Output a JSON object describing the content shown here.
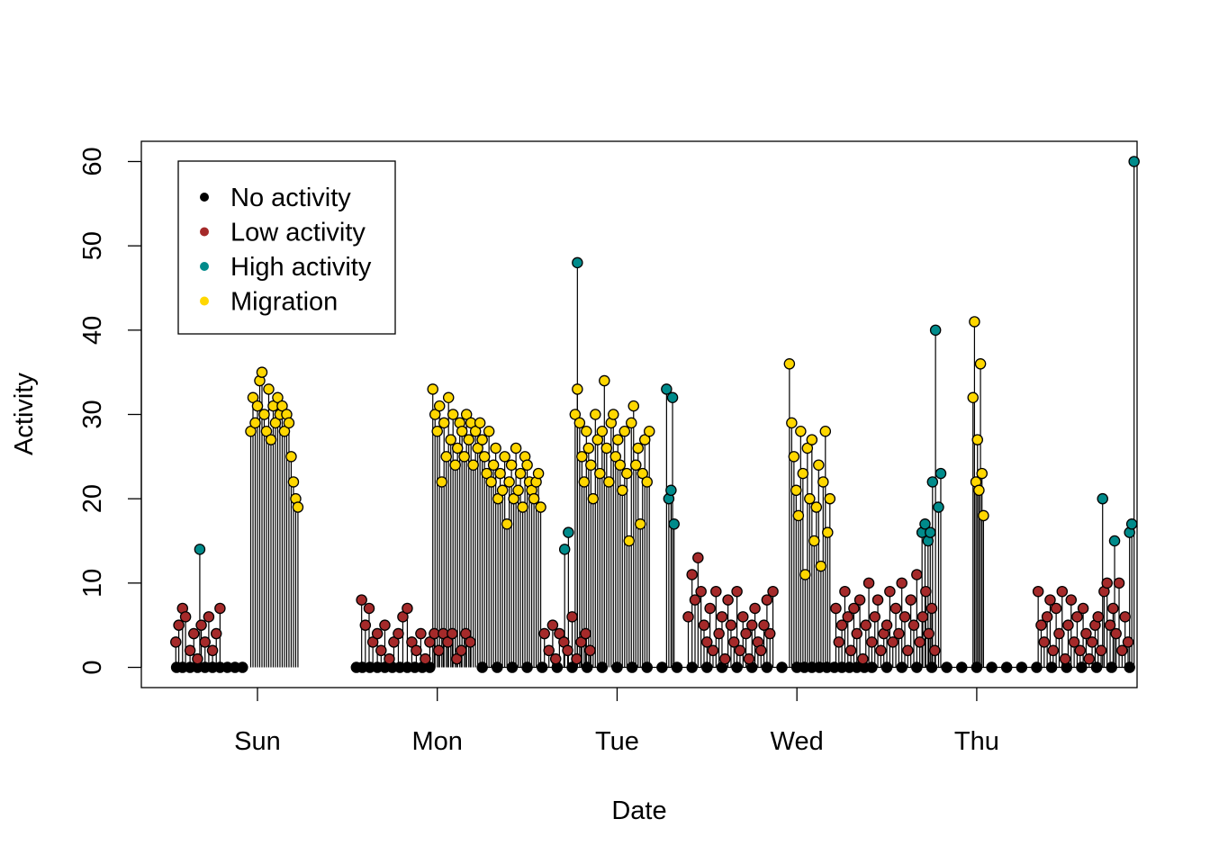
{
  "chart_data": {
    "type": "scatter",
    "xlabel": "Date",
    "ylabel": "Activity",
    "x_ticks": [
      "Sun",
      "Mon",
      "Tue",
      "Wed",
      "Thu"
    ],
    "x_tick_hours": [
      24,
      48,
      72,
      96,
      120
    ],
    "xlim_hours": [
      8.5,
      141.4
    ],
    "ylim": [
      -2.4,
      62.4
    ],
    "y_ticks": [
      0,
      10,
      20,
      30,
      40,
      50,
      60
    ],
    "y_tick_labels": [
      "0",
      "10",
      "20",
      "30",
      "40",
      "50",
      "60"
    ],
    "plot_style": "vertical lines from zero with filled circle markers",
    "grid": false,
    "legend": {
      "position": "top-left",
      "entries": [
        {
          "label": "No activity",
          "color": "#000000"
        },
        {
          "label": "Low activity",
          "color": "#A52A2A"
        },
        {
          "label": "High activity",
          "color": "#008B8B"
        },
        {
          "label": "Migration",
          "color": "#FFD700"
        }
      ]
    },
    "series": [
      {
        "name": "No activity",
        "color": "#000000",
        "x_hours": [
          13.2,
          14.0,
          15.0,
          16.0,
          17.0,
          18.0,
          19.0,
          20.0,
          21.0,
          22.0,
          37.2,
          38.0,
          39.0,
          40.0,
          41.0,
          42.0,
          43.0,
          44.0,
          45.0,
          46.0,
          47.0,
          54.0,
          56.0,
          58.0,
          60.0,
          62.0,
          64.0,
          66.0,
          68.0,
          70.0,
          72.0,
          74.0,
          76.0,
          78.0,
          80.0,
          82.0,
          84.0,
          86.0,
          88.0,
          90.0,
          92.0,
          94.0,
          96.0,
          97.0,
          98.0,
          99.0,
          100.0,
          101.0,
          102.0,
          103.0,
          104.0,
          105.0,
          106.0,
          108.0,
          110.0,
          112.0,
          114.0,
          116.0,
          118.0,
          120.0,
          122.0,
          124.0,
          126.0,
          128.0,
          130.0,
          132.0,
          134.0,
          136.0,
          138.0,
          140.4
        ],
        "values": [
          0,
          0,
          0,
          0,
          0,
          0,
          0,
          0,
          0,
          0,
          0,
          0,
          0,
          0,
          0,
          0,
          0,
          0,
          0,
          0,
          0,
          0,
          0,
          0,
          0,
          0,
          0,
          0,
          0,
          0,
          0,
          0,
          0,
          0,
          0,
          0,
          0,
          0,
          0,
          0,
          0,
          0,
          0,
          0,
          0,
          0,
          0,
          0,
          0,
          0,
          0,
          0,
          0,
          0,
          0,
          0,
          0,
          0,
          0,
          0,
          0,
          0,
          0,
          0,
          0,
          0,
          0,
          0,
          0,
          0
        ]
      },
      {
        "name": "Low activity",
        "color": "#A52A2A",
        "x_hours": [
          13.1,
          13.5,
          14.0,
          14.4,
          15.0,
          15.5,
          16.0,
          16.5,
          17.0,
          17.5,
          18.0,
          18.5,
          19.0,
          37.9,
          38.4,
          38.9,
          39.4,
          40.0,
          40.5,
          41.0,
          41.6,
          42.2,
          42.8,
          43.4,
          44.0,
          44.6,
          45.2,
          45.8,
          46.4,
          47.0,
          47.6,
          48.2,
          48.8,
          49.4,
          50.0,
          50.6,
          51.2,
          51.8,
          52.4,
          62.3,
          62.9,
          63.4,
          63.8,
          64.3,
          64.9,
          65.4,
          66.0,
          66.6,
          67.2,
          67.8,
          68.4,
          81.5,
          82.0,
          82.4,
          82.8,
          83.2,
          83.6,
          84.0,
          84.4,
          84.8,
          85.2,
          85.6,
          86.0,
          86.4,
          86.8,
          87.2,
          87.6,
          88.0,
          88.4,
          88.8,
          89.2,
          89.6,
          90.0,
          90.4,
          90.8,
          91.2,
          91.6,
          92.0,
          92.4,
          92.8,
          101.2,
          101.6,
          102.0,
          102.4,
          102.8,
          103.2,
          103.6,
          104.0,
          104.4,
          104.8,
          105.2,
          105.6,
          106.0,
          106.4,
          106.8,
          107.2,
          107.6,
          108.0,
          108.4,
          108.8,
          109.2,
          109.6,
          110.0,
          110.4,
          110.8,
          111.2,
          111.6,
          112.0,
          112.4,
          112.8,
          113.2,
          113.6,
          114.0,
          114.4,
          128.2,
          128.6,
          129.0,
          129.4,
          129.8,
          130.2,
          130.6,
          131.0,
          131.4,
          131.8,
          132.2,
          132.6,
          133.0,
          133.4,
          133.8,
          134.2,
          134.6,
          135.0,
          135.4,
          135.8,
          136.2,
          136.6,
          137.0,
          137.4,
          137.8,
          138.2,
          138.6,
          139.0,
          139.4,
          139.8,
          140.2
        ],
        "values": [
          3,
          5,
          7,
          6,
          2,
          4,
          1,
          5,
          3,
          6,
          2,
          4,
          7,
          8,
          5,
          7,
          3,
          4,
          2,
          5,
          1,
          3,
          4,
          6,
          7,
          3,
          2,
          4,
          1,
          3,
          4,
          2,
          4,
          3,
          4,
          1,
          2,
          4,
          3,
          4,
          2,
          5,
          1,
          4,
          3,
          2,
          6,
          1,
          3,
          4,
          2,
          6,
          11,
          8,
          13,
          9,
          5,
          3,
          7,
          2,
          9,
          4,
          6,
          1,
          8,
          5,
          3,
          9,
          2,
          6,
          4,
          1,
          5,
          7,
          3,
          2,
          5,
          8,
          4,
          9,
          7,
          3,
          5,
          9,
          6,
          2,
          7,
          4,
          8,
          1,
          5,
          10,
          3,
          6,
          8,
          2,
          4,
          5,
          9,
          3,
          7,
          4,
          10,
          6,
          2,
          8,
          5,
          11,
          3,
          6,
          9,
          4,
          7,
          2,
          9,
          5,
          3,
          6,
          8,
          2,
          7,
          4,
          9,
          1,
          5,
          8,
          3,
          6,
          2,
          7,
          4,
          1,
          3,
          5,
          6,
          2,
          9,
          10,
          5,
          7,
          4,
          10,
          2,
          6,
          3
        ],
        "_unused": "n"
      },
      {
        "name": "High activity",
        "color": "#008B8B",
        "x_hours": [
          16.3,
          65.0,
          65.5,
          66.7,
          78.6,
          78.9,
          79.2,
          79.4,
          79.6,
          112.7,
          113.1,
          113.5,
          113.8,
          114.1,
          114.5,
          114.9,
          115.2,
          136.8,
          138.4,
          140.4,
          140.7,
          141.0
        ],
        "values": [
          14,
          14,
          16,
          48,
          33,
          20,
          21,
          32,
          17,
          16,
          17,
          15,
          16,
          22,
          40,
          19,
          23,
          20,
          15,
          16,
          17,
          60
        ],
        "_unused": "n"
      },
      {
        "name": "Migration",
        "color": "#FFD700",
        "x_hours": [
          23.1,
          23.4,
          23.7,
          24.0,
          24.3,
          24.6,
          24.9,
          25.2,
          25.5,
          25.8,
          26.1,
          26.4,
          26.7,
          27.0,
          27.3,
          27.6,
          27.9,
          28.2,
          28.5,
          28.8,
          29.1,
          29.4,
          47.4,
          47.7,
          48.0,
          48.3,
          48.6,
          48.9,
          49.2,
          49.5,
          49.8,
          50.1,
          50.4,
          50.7,
          51.0,
          51.3,
          51.6,
          51.9,
          52.2,
          52.5,
          52.8,
          53.1,
          53.4,
          53.7,
          54.0,
          54.3,
          54.6,
          54.9,
          55.2,
          55.5,
          55.8,
          56.1,
          56.4,
          56.7,
          57.0,
          57.3,
          57.6,
          57.9,
          58.2,
          58.5,
          58.8,
          59.1,
          59.4,
          59.7,
          60.0,
          60.3,
          60.6,
          60.9,
          61.2,
          61.5,
          61.8,
          66.4,
          66.7,
          67.0,
          67.3,
          67.6,
          67.9,
          68.2,
          68.5,
          68.8,
          69.1,
          69.4,
          69.7,
          70.0,
          70.3,
          70.6,
          70.9,
          71.2,
          71.5,
          71.8,
          72.1,
          72.4,
          72.7,
          73.0,
          73.3,
          73.6,
          73.9,
          74.2,
          74.5,
          74.8,
          75.1,
          75.4,
          75.7,
          76.0,
          76.3,
          95.0,
          95.3,
          95.6,
          95.9,
          96.2,
          96.5,
          96.8,
          97.1,
          97.4,
          97.7,
          98.0,
          98.3,
          98.6,
          98.9,
          99.2,
          99.5,
          99.8,
          100.1,
          100.4,
          119.5,
          119.7,
          119.9,
          120.1,
          120.3,
          120.5,
          120.7,
          120.9
        ],
        "values": [
          28,
          32,
          29,
          31,
          34,
          35,
          30,
          28,
          33,
          27,
          31,
          29,
          32,
          30,
          31,
          28,
          30,
          29,
          25,
          22,
          20,
          19,
          33,
          30,
          28,
          31,
          22,
          29,
          25,
          32,
          27,
          30,
          24,
          26,
          29,
          28,
          25,
          30,
          27,
          29,
          24,
          28,
          26,
          29,
          27,
          25,
          23,
          28,
          22,
          24,
          26,
          20,
          23,
          21,
          25,
          17,
          22,
          24,
          20,
          26,
          21,
          23,
          19,
          25,
          24,
          22,
          21,
          20,
          22,
          23,
          19,
          30,
          33,
          29,
          25,
          22,
          28,
          26,
          24,
          20,
          30,
          27,
          23,
          28,
          34,
          26,
          22,
          29,
          30,
          25,
          27,
          24,
          21,
          28,
          23,
          15,
          29,
          31,
          24,
          26,
          17,
          23,
          27,
          22,
          28,
          36,
          29,
          25,
          21,
          18,
          28,
          23,
          11,
          26,
          20,
          27,
          15,
          19,
          24,
          12,
          22,
          28,
          16,
          20,
          32,
          41,
          22,
          27,
          21,
          36,
          23,
          18
        ],
        "_unused": "n"
      }
    ]
  }
}
